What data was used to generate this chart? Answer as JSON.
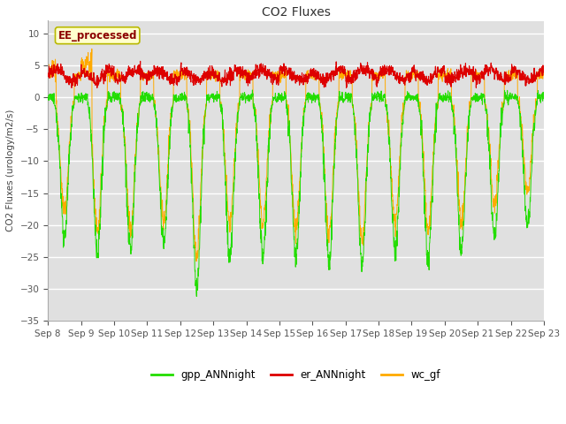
{
  "title": "CO2 Fluxes",
  "ylabel": "CO2 Fluxes (urology/m2/s)",
  "ylim": [
    -35,
    12
  ],
  "yticks": [
    -35,
    -30,
    -25,
    -20,
    -15,
    -10,
    -5,
    0,
    5,
    10
  ],
  "background_color": "#ffffff",
  "plot_bg_color": "#e0e0e0",
  "grid_color": "#c8c8c8",
  "annotation_text": "EE_processed",
  "annotation_facecolor": "#ffffcc",
  "annotation_edgecolor": "#b8b800",
  "colors": {
    "gpp": "#22dd00",
    "er": "#dd0000",
    "wc": "#ffaa00"
  },
  "legend_labels": [
    "gpp_ANNnight",
    "er_ANNnight",
    "wc_gf"
  ],
  "n_days": 15,
  "points_per_day": 144,
  "start_day": 8,
  "end_day": 23,
  "figsize": [
    6.4,
    4.8
  ],
  "dpi": 100
}
